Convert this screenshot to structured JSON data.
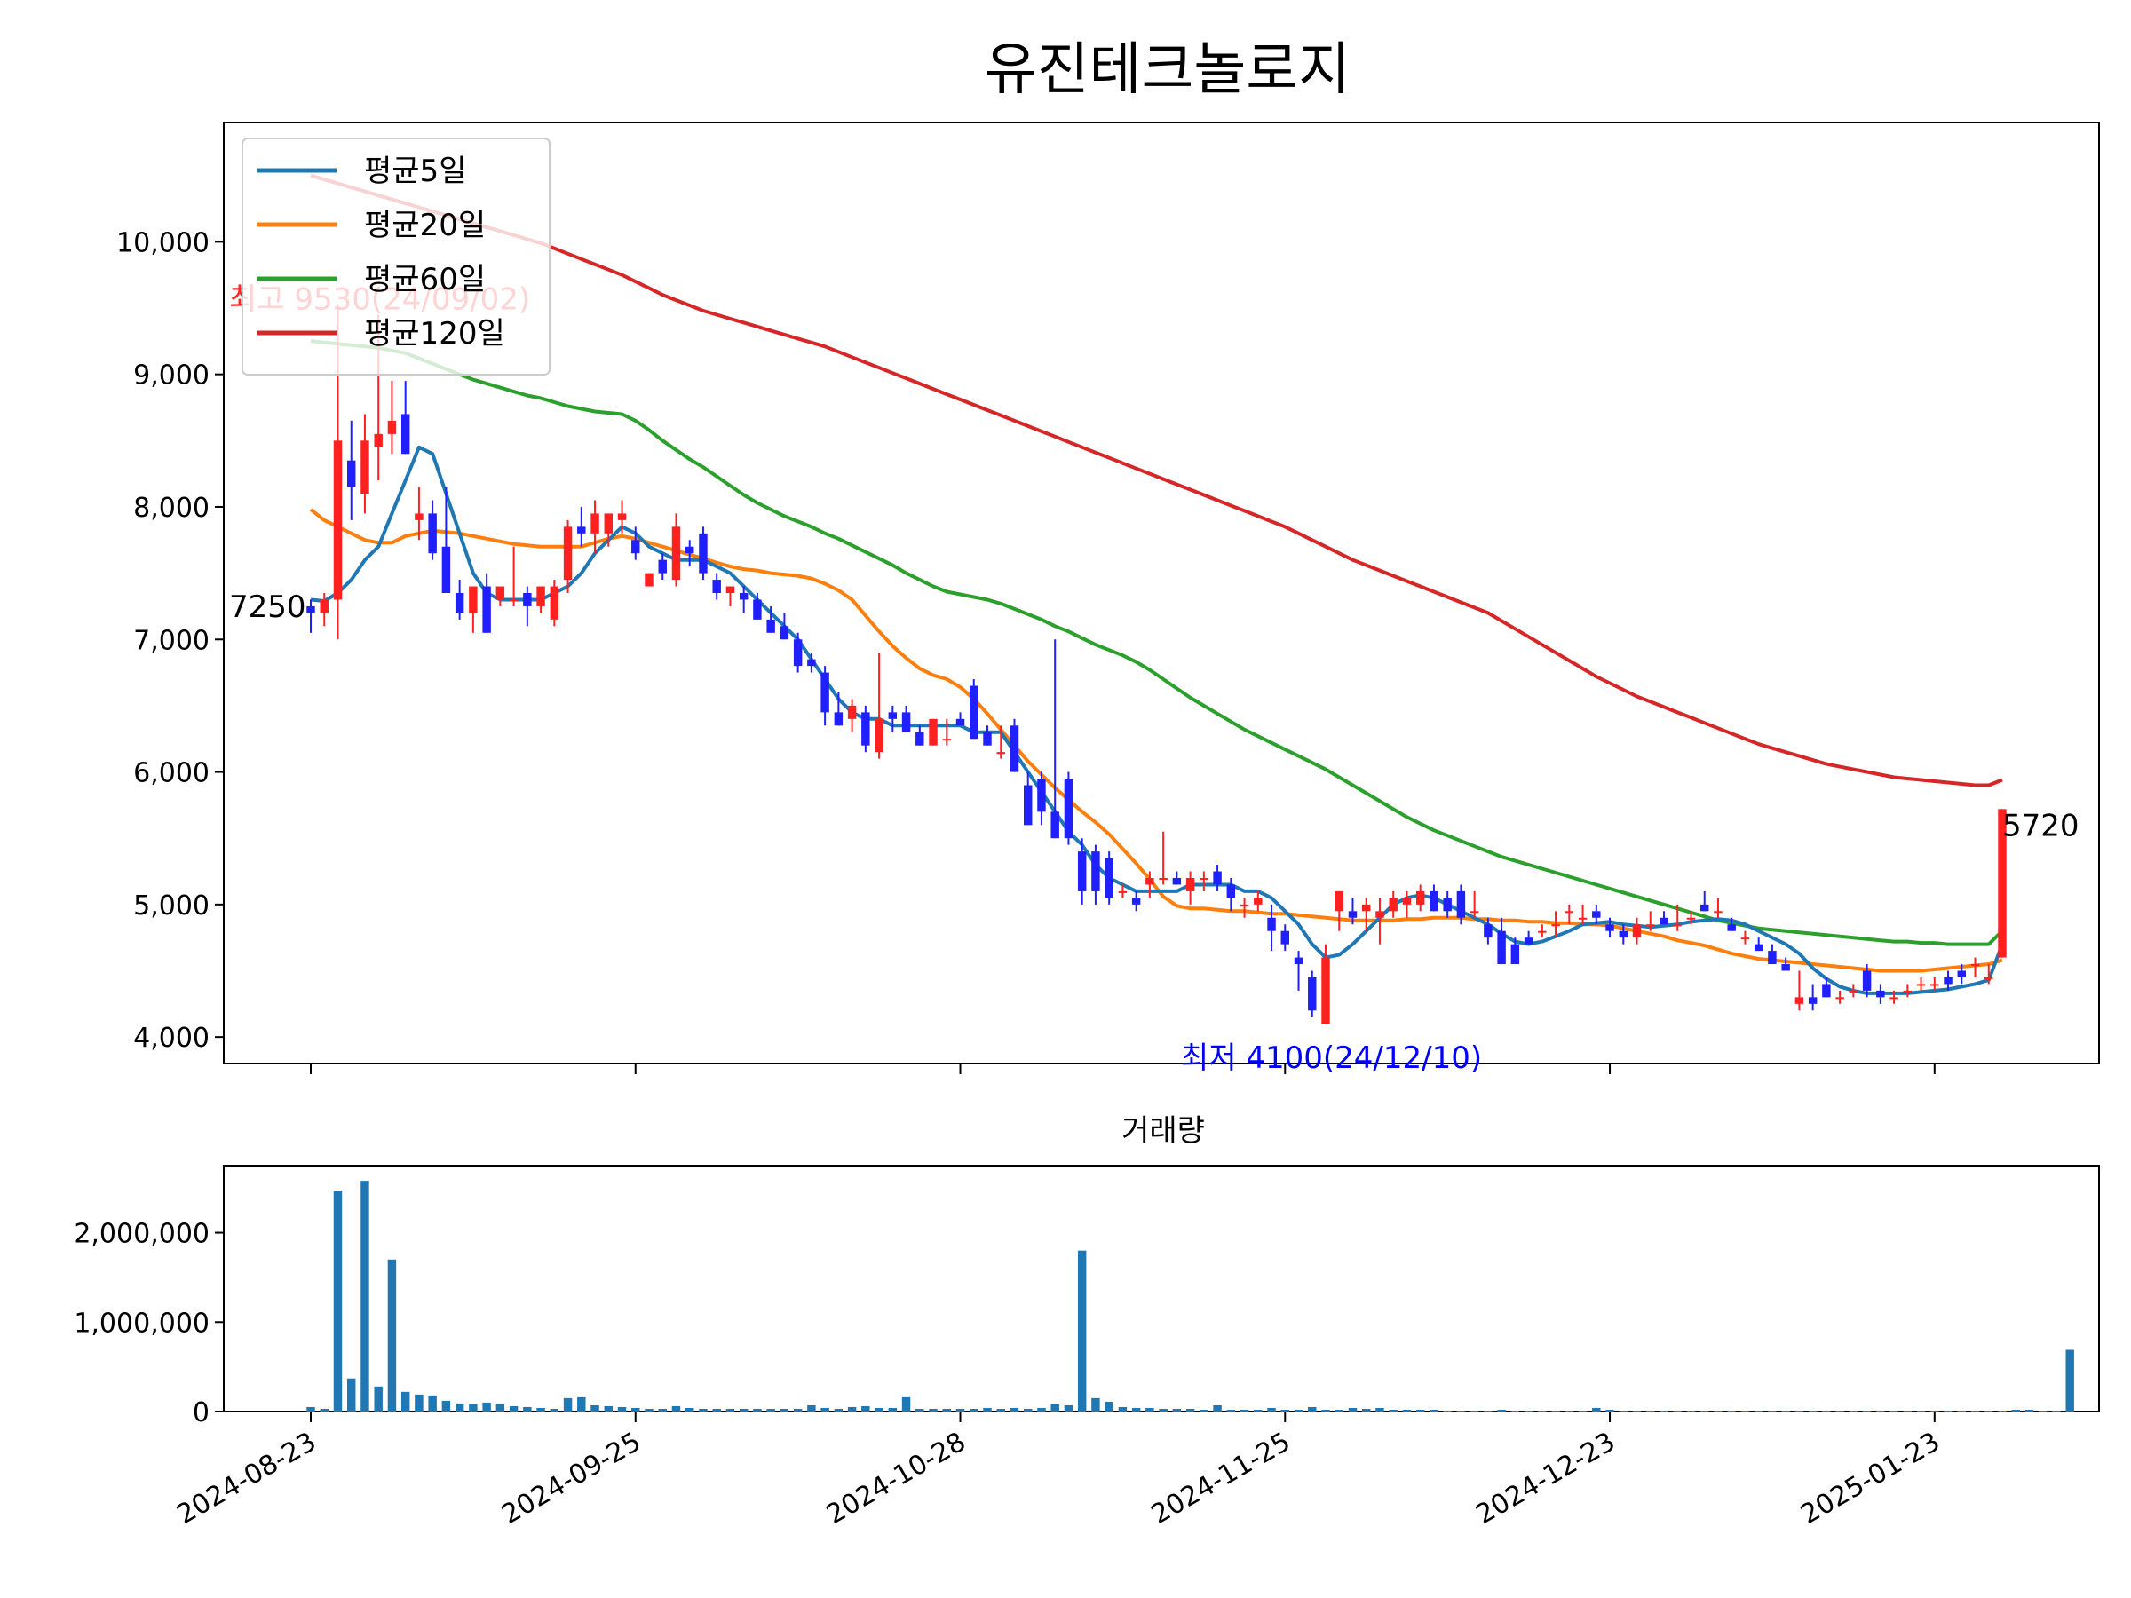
{
  "chart_data": {
    "type": "candlestick",
    "title": "유진테크놀로지",
    "volume_title": "거래량",
    "up_color": "#ff2020",
    "down_color": "#2020ff",
    "x_ticks": [
      "2024-08-23",
      "2024-09-25",
      "2024-10-28",
      "2024-11-25",
      "2024-12-23",
      "2025-01-23"
    ],
    "price_axis": {
      "ylim": [
        3800,
        10900
      ],
      "ticks": [
        4000,
        5000,
        6000,
        7000,
        8000,
        9000,
        10000
      ],
      "tick_labels": [
        "4,000",
        "5,000",
        "6,000",
        "7,000",
        "8,000",
        "9,000",
        "10,000"
      ]
    },
    "volume_axis": {
      "ylim": [
        0,
        2750000
      ],
      "ticks": [
        0,
        1000000,
        2000000
      ],
      "tick_labels": [
        "0",
        "1,000,000",
        "2,000,000"
      ]
    },
    "legend": {
      "position": "upper-left",
      "entries": [
        {
          "label": "평균5일",
          "color": "#1f77b4"
        },
        {
          "label": "평균20일",
          "color": "#ff7f0e"
        },
        {
          "label": "평균60일",
          "color": "#2ca02c"
        },
        {
          "label": "평균120일",
          "color": "#d62728"
        }
      ]
    },
    "annotations": {
      "first": {
        "text": "7250",
        "value": 7250
      },
      "last": {
        "text": "5720",
        "value": 5720
      },
      "high": {
        "text": "최고 9530(24/09/02)",
        "value": 9530,
        "color": "#ff0000"
      },
      "low": {
        "text": "최저 4100(24/12/10)",
        "value": 4100,
        "color": "#0000ff"
      }
    },
    "candles": [
      [
        7250,
        7300,
        7050,
        7200
      ],
      [
        7200,
        7350,
        7100,
        7300
      ],
      [
        7300,
        9530,
        7000,
        8500
      ],
      [
        8350,
        8650,
        7900,
        8150
      ],
      [
        8100,
        8700,
        7950,
        8500
      ],
      [
        8450,
        9450,
        8200,
        8550
      ],
      [
        8550,
        8950,
        8400,
        8650
      ],
      [
        8700,
        8950,
        8400,
        8400
      ],
      [
        7900,
        8150,
        7750,
        7950
      ],
      [
        7950,
        8050,
        7600,
        7650
      ],
      [
        7700,
        8150,
        7350,
        7350
      ],
      [
        7350,
        7450,
        7150,
        7200
      ],
      [
        7200,
        7400,
        7050,
        7400
      ],
      [
        7400,
        7500,
        7050,
        7050
      ],
      [
        7300,
        7400,
        7250,
        7400
      ],
      [
        7300,
        7700,
        7250,
        7300
      ],
      [
        7350,
        7400,
        7100,
        7250
      ],
      [
        7250,
        7400,
        7200,
        7400
      ],
      [
        7150,
        7450,
        7100,
        7400
      ],
      [
        7450,
        7900,
        7350,
        7850
      ],
      [
        7850,
        8000,
        7700,
        7800
      ],
      [
        7800,
        8050,
        7650,
        7950
      ],
      [
        7800,
        7950,
        7700,
        7950
      ],
      [
        7900,
        8050,
        7800,
        7950
      ],
      [
        7750,
        7850,
        7600,
        7650
      ],
      [
        7400,
        7500,
        7400,
        7500
      ],
      [
        7600,
        7650,
        7450,
        7500
      ],
      [
        7450,
        7950,
        7400,
        7850
      ],
      [
        7700,
        7750,
        7550,
        7650
      ],
      [
        7800,
        7850,
        7450,
        7500
      ],
      [
        7450,
        7500,
        7300,
        7350
      ],
      [
        7350,
        7400,
        7250,
        7400
      ],
      [
        7350,
        7400,
        7200,
        7300
      ],
      [
        7300,
        7350,
        7150,
        7150
      ],
      [
        7150,
        7250,
        7050,
        7050
      ],
      [
        7100,
        7200,
        7000,
        7000
      ],
      [
        7000,
        7050,
        6750,
        6800
      ],
      [
        6850,
        6900,
        6750,
        6800
      ],
      [
        6750,
        6800,
        6350,
        6450
      ],
      [
        6450,
        6600,
        6350,
        6350
      ],
      [
        6400,
        6550,
        6300,
        6500
      ],
      [
        6450,
        6500,
        6150,
        6200
      ],
      [
        6150,
        6900,
        6100,
        6400
      ],
      [
        6450,
        6500,
        6300,
        6400
      ],
      [
        6450,
        6500,
        6300,
        6300
      ],
      [
        6300,
        6350,
        6200,
        6200
      ],
      [
        6200,
        6400,
        6200,
        6400
      ],
      [
        6250,
        6400,
        6200,
        6250
      ],
      [
        6400,
        6450,
        6350,
        6350
      ],
      [
        6650,
        6700,
        6250,
        6250
      ],
      [
        6300,
        6350,
        6200,
        6200
      ],
      [
        6150,
        6350,
        6100,
        6150
      ],
      [
        6350,
        6400,
        6000,
        6000
      ],
      [
        5900,
        6000,
        5600,
        5600
      ],
      [
        5950,
        6000,
        5600,
        5700
      ],
      [
        5700,
        7000,
        5500,
        5500
      ],
      [
        5950,
        6000,
        5450,
        5500
      ],
      [
        5400,
        5500,
        5000,
        5100
      ],
      [
        5400,
        5450,
        5000,
        5100
      ],
      [
        5350,
        5400,
        5000,
        5050
      ],
      [
        5100,
        5150,
        5050,
        5100
      ],
      [
        5050,
        5100,
        4950,
        5000
      ],
      [
        5150,
        5250,
        5050,
        5200
      ],
      [
        5200,
        5550,
        5150,
        5200
      ],
      [
        5200,
        5250,
        5150,
        5150
      ],
      [
        5100,
        5250,
        5000,
        5200
      ],
      [
        5200,
        5250,
        5100,
        5200
      ],
      [
        5250,
        5300,
        5100,
        5150
      ],
      [
        5150,
        5200,
        4950,
        5050
      ],
      [
        5000,
        5050,
        4900,
        5000
      ],
      [
        5000,
        5100,
        4950,
        5050
      ],
      [
        4900,
        5000,
        4650,
        4800
      ],
      [
        4800,
        4850,
        4650,
        4700
      ],
      [
        4600,
        4650,
        4350,
        4550
      ],
      [
        4450,
        4500,
        4150,
        4200
      ],
      [
        4100,
        4700,
        4100,
        4600
      ],
      [
        4950,
        5100,
        4800,
        5100
      ],
      [
        4950,
        5050,
        4850,
        4900
      ],
      [
        4950,
        5050,
        4800,
        5000
      ],
      [
        4900,
        5050,
        4700,
        4950
      ],
      [
        4950,
        5100,
        4900,
        5050
      ],
      [
        5000,
        5100,
        4900,
        5050
      ],
      [
        5000,
        5150,
        4950,
        5100
      ],
      [
        5100,
        5150,
        4950,
        4950
      ],
      [
        5050,
        5100,
        4900,
        4950
      ],
      [
        5100,
        5150,
        4850,
        4900
      ],
      [
        4950,
        5100,
        4900,
        4950
      ],
      [
        4850,
        4900,
        4700,
        4750
      ],
      [
        4800,
        4900,
        4550,
        4550
      ],
      [
        4700,
        4750,
        4550,
        4550
      ],
      [
        4750,
        4800,
        4700,
        4700
      ],
      [
        4800,
        4850,
        4750,
        4800
      ],
      [
        4850,
        4950,
        4750,
        4850
      ],
      [
        4950,
        5000,
        4850,
        4950
      ],
      [
        4900,
        5000,
        4850,
        4900
      ],
      [
        4950,
        5000,
        4850,
        4900
      ],
      [
        4850,
        4900,
        4750,
        4800
      ],
      [
        4800,
        4850,
        4700,
        4750
      ],
      [
        4750,
        4900,
        4700,
        4850
      ],
      [
        4850,
        4950,
        4800,
        4850
      ],
      [
        4900,
        4950,
        4850,
        4850
      ],
      [
        4850,
        5000,
        4800,
        4850
      ],
      [
        4900,
        4950,
        4850,
        4900
      ],
      [
        5000,
        5100,
        4950,
        4950
      ],
      [
        4950,
        5050,
        4900,
        4950
      ],
      [
        4850,
        4900,
        4800,
        4800
      ],
      [
        4750,
        4800,
        4700,
        4750
      ],
      [
        4700,
        4750,
        4650,
        4650
      ],
      [
        4650,
        4700,
        4550,
        4550
      ],
      [
        4550,
        4600,
        4500,
        4500
      ],
      [
        4250,
        4500,
        4200,
        4300
      ],
      [
        4300,
        4400,
        4200,
        4250
      ],
      [
        4400,
        4450,
        4300,
        4300
      ],
      [
        4300,
        4350,
        4250,
        4300
      ],
      [
        4350,
        4400,
        4300,
        4350
      ],
      [
        4500,
        4550,
        4300,
        4350
      ],
      [
        4350,
        4400,
        4250,
        4300
      ],
      [
        4300,
        4350,
        4250,
        4300
      ],
      [
        4350,
        4400,
        4300,
        4350
      ],
      [
        4400,
        4450,
        4350,
        4400
      ],
      [
        4400,
        4450,
        4350,
        4400
      ],
      [
        4450,
        4500,
        4350,
        4400
      ],
      [
        4500,
        4550,
        4400,
        4450
      ],
      [
        4550,
        4600,
        4450,
        4550
      ],
      [
        4450,
        4550,
        4400,
        4450
      ],
      [
        4600,
        5720,
        4600,
        5720
      ]
    ],
    "volumes": [
      50000,
      30000,
      2470000,
      370000,
      2580000,
      280000,
      1700000,
      220000,
      190000,
      180000,
      120000,
      90000,
      80000,
      100000,
      90000,
      60000,
      50000,
      40000,
      30000,
      150000,
      160000,
      70000,
      60000,
      50000,
      40000,
      30000,
      30000,
      60000,
      40000,
      30000,
      30000,
      30000,
      30000,
      30000,
      30000,
      30000,
      30000,
      70000,
      40000,
      30000,
      50000,
      60000,
      40000,
      40000,
      160000,
      30000,
      30000,
      30000,
      30000,
      30000,
      40000,
      30000,
      40000,
      30000,
      40000,
      80000,
      70000,
      1800000,
      150000,
      110000,
      50000,
      40000,
      40000,
      30000,
      30000,
      30000,
      20000,
      70000,
      20000,
      20000,
      20000,
      40000,
      20000,
      20000,
      50000,
      20000,
      20000,
      40000,
      30000,
      40000,
      20000,
      20000,
      20000,
      20000,
      10000,
      10000,
      10000,
      10000,
      20000,
      10000,
      10000,
      10000,
      10000,
      10000,
      10000,
      40000,
      20000,
      10000,
      10000,
      10000,
      10000,
      10000,
      10000,
      10000,
      10000,
      10000,
      10000,
      10000,
      10000,
      10000,
      10000,
      10000,
      10000,
      10000,
      10000,
      10000,
      10000,
      10000,
      10000,
      10000,
      10000,
      10000,
      10000,
      10000,
      10000,
      10000,
      20000,
      20000,
      10000,
      10000,
      690000
    ],
    "x_tick_index": [
      0,
      24,
      48,
      72,
      96,
      120
    ],
    "ma5": [
      7300,
      7290,
      7350,
      7450,
      7600,
      7700,
      7950,
      8200,
      8450,
      8400,
      8100,
      7800,
      7500,
      7350,
      7300,
      7300,
      7300,
      7300,
      7350,
      7400,
      7500,
      7650,
      7750,
      7850,
      7800,
      7700,
      7650,
      7600,
      7600,
      7600,
      7550,
      7500,
      7400,
      7300,
      7200,
      7100,
      7000,
      6850,
      6700,
      6550,
      6450,
      6400,
      6400,
      6350,
      6350,
      6350,
      6350,
      6350,
      6350,
      6300,
      6300,
      6300,
      6150,
      6000,
      5850,
      5700,
      5550,
      5450,
      5300,
      5200,
      5150,
      5100,
      5100,
      5100,
      5100,
      5150,
      5150,
      5150,
      5150,
      5100,
      5100,
      5050,
      4950,
      4850,
      4700,
      4600,
      4620,
      4700,
      4800,
      4900,
      5000,
      5050,
      5070,
      5050,
      5000,
      4950,
      4900,
      4850,
      4780,
      4720,
      4700,
      4720,
      4760,
      4800,
      4850,
      4860,
      4870,
      4850,
      4840,
      4830,
      4840,
      4850,
      4870,
      4880,
      4890,
      4880,
      4850,
      4800,
      4750,
      4700,
      4630,
      4520,
      4440,
      4380,
      4350,
      4330,
      4330,
      4330,
      4330,
      4340,
      4350,
      4360,
      4380,
      4400,
      4430,
      4700
    ],
    "ma20": [
      7980,
      7900,
      7850,
      7800,
      7750,
      7730,
      7730,
      7780,
      7800,
      7820,
      7810,
      7800,
      7780,
      7760,
      7740,
      7720,
      7710,
      7700,
      7700,
      7700,
      7700,
      7730,
      7760,
      7780,
      7760,
      7730,
      7700,
      7670,
      7640,
      7610,
      7580,
      7550,
      7530,
      7520,
      7500,
      7490,
      7480,
      7460,
      7420,
      7370,
      7300,
      7180,
      7060,
      6950,
      6860,
      6780,
      6730,
      6700,
      6640,
      6550,
      6440,
      6320,
      6200,
      6080,
      5980,
      5880,
      5790,
      5700,
      5620,
      5530,
      5420,
      5310,
      5190,
      5060,
      4990,
      4970,
      4970,
      4960,
      4950,
      4950,
      4940,
      4930,
      4930,
      4920,
      4910,
      4900,
      4890,
      4880,
      4880,
      4880,
      4880,
      4890,
      4890,
      4900,
      4900,
      4900,
      4890,
      4890,
      4880,
      4880,
      4870,
      4870,
      4860,
      4860,
      4850,
      4850,
      4840,
      4820,
      4800,
      4780,
      4760,
      4730,
      4710,
      4690,
      4660,
      4630,
      4610,
      4590,
      4580,
      4570,
      4560,
      4550,
      4540,
      4530,
      4520,
      4510,
      4500,
      4500,
      4500,
      4500,
      4510,
      4520,
      4530,
      4540,
      4550,
      4580
    ],
    "ma60": [
      9250,
      9240,
      9230,
      9220,
      9210,
      9200,
      9180,
      9160,
      9120,
      9080,
      9040,
      9000,
      8960,
      8930,
      8900,
      8870,
      8840,
      8820,
      8790,
      8760,
      8740,
      8720,
      8710,
      8700,
      8650,
      8580,
      8500,
      8430,
      8360,
      8300,
      8230,
      8160,
      8090,
      8030,
      7980,
      7930,
      7890,
      7850,
      7800,
      7760,
      7710,
      7660,
      7610,
      7560,
      7500,
      7450,
      7400,
      7360,
      7340,
      7320,
      7300,
      7270,
      7230,
      7190,
      7150,
      7100,
      7060,
      7010,
      6960,
      6920,
      6880,
      6830,
      6770,
      6700,
      6630,
      6560,
      6500,
      6440,
      6380,
      6320,
      6270,
      6220,
      6170,
      6120,
      6070,
      6020,
      5960,
      5900,
      5840,
      5780,
      5720,
      5660,
      5610,
      5560,
      5520,
      5480,
      5440,
      5400,
      5360,
      5330,
      5300,
      5270,
      5240,
      5210,
      5180,
      5150,
      5120,
      5090,
      5060,
      5030,
      5000,
      4970,
      4940,
      4910,
      4880,
      4860,
      4840,
      4820,
      4810,
      4800,
      4790,
      4780,
      4770,
      4760,
      4750,
      4740,
      4730,
      4720,
      4720,
      4710,
      4710,
      4700,
      4700,
      4700,
      4700,
      4800
    ],
    "ma120": [
      10500,
      10470,
      10440,
      10410,
      10380,
      10350,
      10320,
      10290,
      10260,
      10230,
      10200,
      10170,
      10140,
      10110,
      10080,
      10050,
      10020,
      9990,
      9950,
      9910,
      9870,
      9830,
      9790,
      9750,
      9700,
      9650,
      9600,
      9560,
      9520,
      9480,
      9450,
      9420,
      9390,
      9360,
      9330,
      9300,
      9270,
      9240,
      9210,
      9170,
      9130,
      9090,
      9050,
      9010,
      8970,
      8930,
      8890,
      8850,
      8810,
      8770,
      8730,
      8690,
      8650,
      8610,
      8570,
      8530,
      8490,
      8450,
      8410,
      8370,
      8330,
      8290,
      8250,
      8210,
      8170,
      8130,
      8090,
      8050,
      8010,
      7970,
      7930,
      7890,
      7850,
      7800,
      7750,
      7700,
      7650,
      7600,
      7560,
      7520,
      7480,
      7440,
      7400,
      7360,
      7320,
      7280,
      7240,
      7200,
      7140,
      7080,
      7020,
      6960,
      6900,
      6840,
      6780,
      6720,
      6670,
      6620,
      6570,
      6530,
      6490,
      6450,
      6410,
      6370,
      6330,
      6290,
      6250,
      6210,
      6180,
      6150,
      6120,
      6090,
      6060,
      6040,
      6020,
      6000,
      5980,
      5960,
      5950,
      5940,
      5930,
      5920,
      5910,
      5900,
      5900,
      5940
    ]
  }
}
